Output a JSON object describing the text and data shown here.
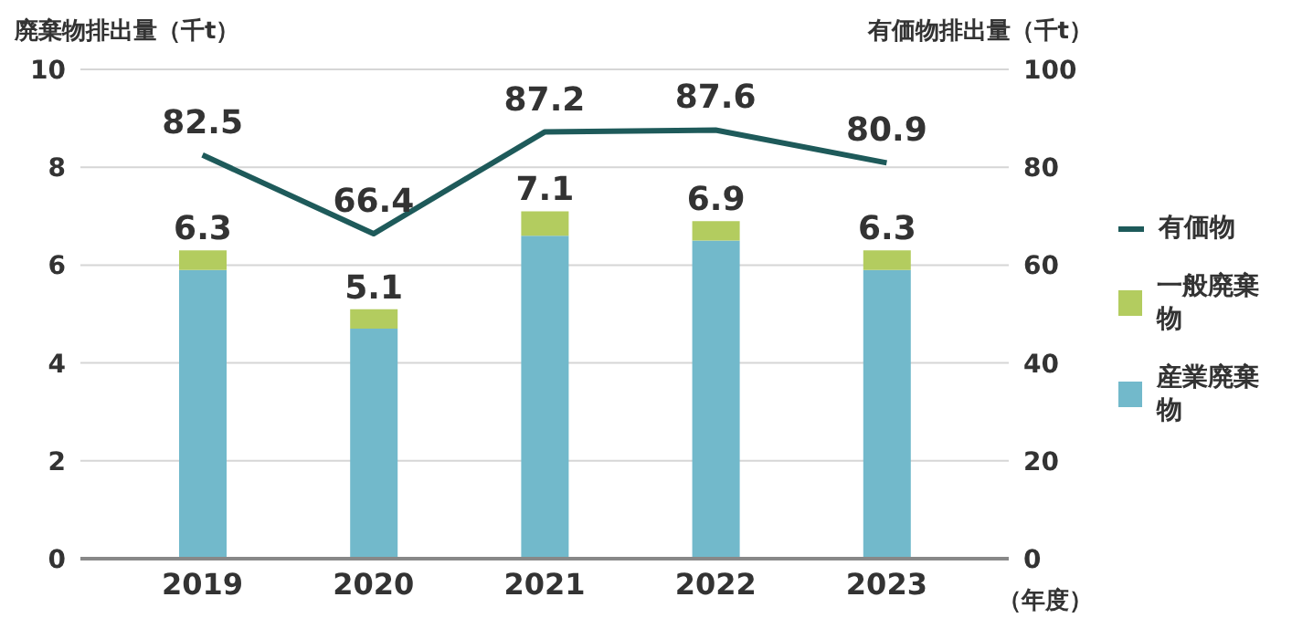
{
  "chart_data": {
    "type": "bar",
    "stacked": true,
    "ylabel": "廃棄物排出量（千t）",
    "y2label": "有価物排出量（千t）",
    "xlabel": "（年度）",
    "categories": [
      "2019",
      "2020",
      "2021",
      "2022",
      "2023"
    ],
    "series": [
      {
        "name": "産業廃棄物",
        "color": "#72b9cb",
        "values": [
          5.9,
          4.7,
          6.6,
          6.5,
          5.9
        ]
      },
      {
        "name": "一般廃棄物",
        "color": "#b3cc5f",
        "values": [
          0.4,
          0.4,
          0.5,
          0.4,
          0.4
        ]
      },
      {
        "name": "有価物",
        "type": "line",
        "axis": "y2",
        "color": "#1e5a5a",
        "marker": "none",
        "values": [
          82.5,
          66.4,
          87.2,
          87.6,
          80.9
        ],
        "value_labels": [
          "82.5",
          "66.4",
          "87.2",
          "87.6",
          "80.9"
        ]
      }
    ],
    "totals": [
      "6.3",
      "5.1",
      "7.1",
      "6.9",
      "6.3"
    ],
    "ylim": [
      0,
      10
    ],
    "yticks": [
      0,
      2,
      4,
      6,
      8,
      10
    ],
    "y2lim": [
      0,
      100
    ],
    "y2ticks": [
      0,
      20,
      40,
      60,
      80,
      100
    ],
    "grid": "y",
    "legend": "right"
  }
}
